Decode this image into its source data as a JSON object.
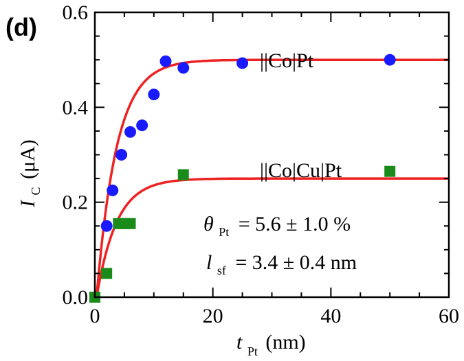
{
  "panel_label": "(d)",
  "chart_data": {
    "type": "scatter",
    "xlabel": {
      "symbol": "t",
      "subscript": "Pt",
      "unit": "(nm)"
    },
    "ylabel": {
      "symbol": "I",
      "subscript": "C",
      "unit": "(μA)"
    },
    "xlim": [
      0,
      60
    ],
    "ylim": [
      0,
      0.6
    ],
    "xticks": [
      0,
      20,
      40,
      60
    ],
    "yticks": [
      0.0,
      0.2,
      0.4,
      0.6
    ],
    "xtick_labels": [
      "0",
      "20",
      "40",
      "60"
    ],
    "ytick_labels": [
      "0.0",
      "0.2",
      "0.4",
      "0.6"
    ],
    "grid": false,
    "series": [
      {
        "name": "||Co|Pt",
        "marker": "circle",
        "color": "#1a1aff",
        "x": [
          2,
          3,
          4.5,
          6,
          8,
          10,
          12,
          15,
          25,
          50
        ],
        "y": [
          0.15,
          0.225,
          0.3,
          0.348,
          0.362,
          0.427,
          0.497,
          0.483,
          0.493,
          0.5
        ]
      },
      {
        "name": "||Co|Cu|Pt",
        "marker": "square",
        "color": "#1a8a1a",
        "x": [
          0,
          2,
          4,
          5,
          6,
          15,
          50
        ],
        "y": [
          0.0,
          0.05,
          0.155,
          0.155,
          0.155,
          0.258,
          0.265
        ]
      }
    ],
    "fits": [
      {
        "series": "||Co|Pt",
        "color": "#ee2222",
        "saturation": 0.5,
        "length_nm": 3.4,
        "offset_nm": 0.3
      },
      {
        "series": "||Co|Cu|Pt",
        "color": "#ee2222",
        "saturation": 0.25,
        "length_nm": 3.4,
        "offset_nm": 0.3
      }
    ],
    "annotations": {
      "theta_symbol": "θ",
      "theta_subscript": "Pt",
      "theta_value": "= 5.6 ± 1.0 %",
      "l_symbol": "l",
      "l_subscript": "sf",
      "l_value": "= 3.4 ± 0.4 nm"
    }
  }
}
